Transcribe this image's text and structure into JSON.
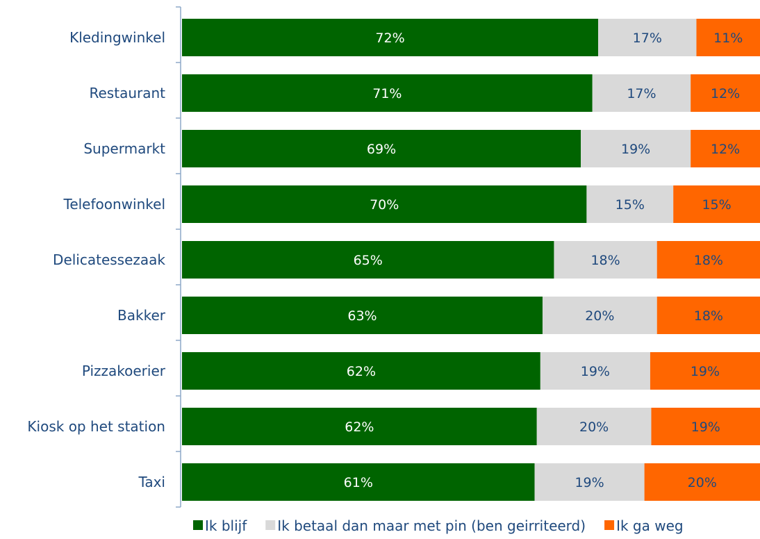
{
  "chart_data": {
    "type": "bar",
    "orientation": "horizontal",
    "stacked": "percent",
    "categories": [
      "Kledingwinkel",
      "Restaurant",
      "Supermarkt",
      "Telefoonwinkel",
      "Delicatessezaak",
      "Bakker",
      "Pizzakoerier",
      "Kiosk op het station",
      "Taxi"
    ],
    "series": [
      {
        "name": "Ik blijf",
        "color": "#006400",
        "label_color": "#ffffff",
        "values": [
          72,
          71,
          69,
          70,
          65,
          63,
          62,
          62,
          61
        ],
        "labels": [
          "72%",
          "71%",
          "69%",
          "70%",
          "65%",
          "63%",
          "62%",
          "62%",
          "61%"
        ]
      },
      {
        "name": "Ik betaal dan maar met pin (ben geirriteerd)",
        "color": "#D9D9D9",
        "label_color": "#1F497D",
        "values": [
          17,
          17,
          19,
          15,
          18,
          20,
          19,
          20,
          19
        ],
        "labels": [
          "17%",
          "17%",
          "19%",
          "15%",
          "18%",
          "20%",
          "19%",
          "20%",
          "19%"
        ]
      },
      {
        "name": "Ik ga weg",
        "color": "#FF6600",
        "label_color": "#1F497D",
        "values": [
          11,
          12,
          12,
          15,
          18,
          18,
          19,
          19,
          20
        ],
        "labels": [
          "11%",
          "12%",
          "12%",
          "15%",
          "18%",
          "18%",
          "19%",
          "19%",
          "20%"
        ]
      }
    ],
    "legend_position": "bottom",
    "grid": false,
    "axis_color": "#8EA9C8"
  }
}
